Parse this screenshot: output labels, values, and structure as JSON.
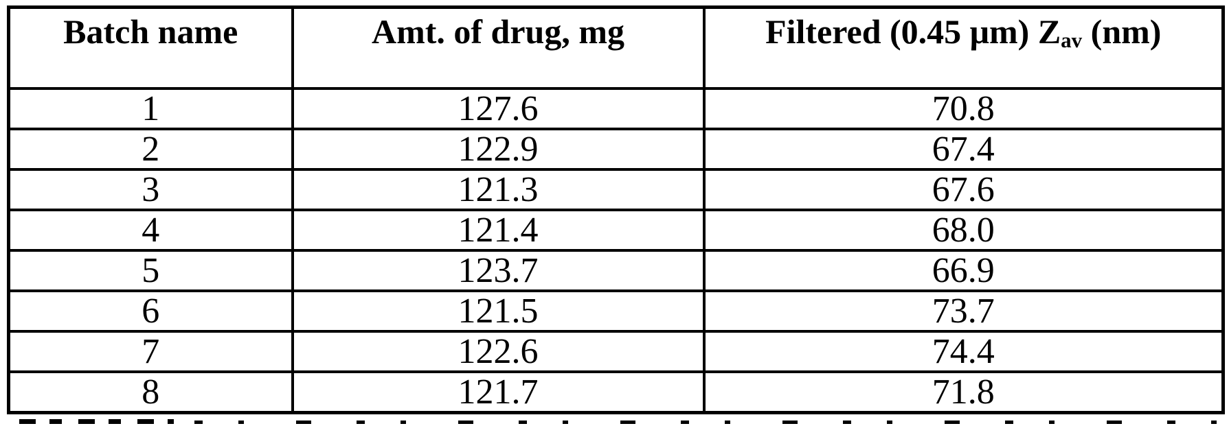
{
  "page": {
    "background_color": "#ffffff",
    "text_color": "#000000",
    "border_color": "#000000"
  },
  "table": {
    "headers": {
      "batch": "Batch name",
      "amount": "Amt. of drug, mg",
      "zav_prefix": "Filtered (0.45 μm) Z",
      "zav_sub": "av",
      "zav_suffix": " (nm)"
    },
    "rows": [
      {
        "batch": "1",
        "amount": "127.6",
        "z_av": "70.8"
      },
      {
        "batch": "2",
        "amount": "122.9",
        "z_av": "67.4"
      },
      {
        "batch": "3",
        "amount": "121.3",
        "z_av": "67.6"
      },
      {
        "batch": "4",
        "amount": "121.4",
        "z_av": "68.0"
      },
      {
        "batch": "5",
        "amount": "123.7",
        "z_av": "66.9"
      },
      {
        "batch": "6",
        "amount": "121.5",
        "z_av": "73.7"
      },
      {
        "batch": "7",
        "amount": "122.6",
        "z_av": "74.4"
      },
      {
        "batch": "8",
        "amount": "121.7",
        "z_av": "71.8"
      }
    ]
  }
}
